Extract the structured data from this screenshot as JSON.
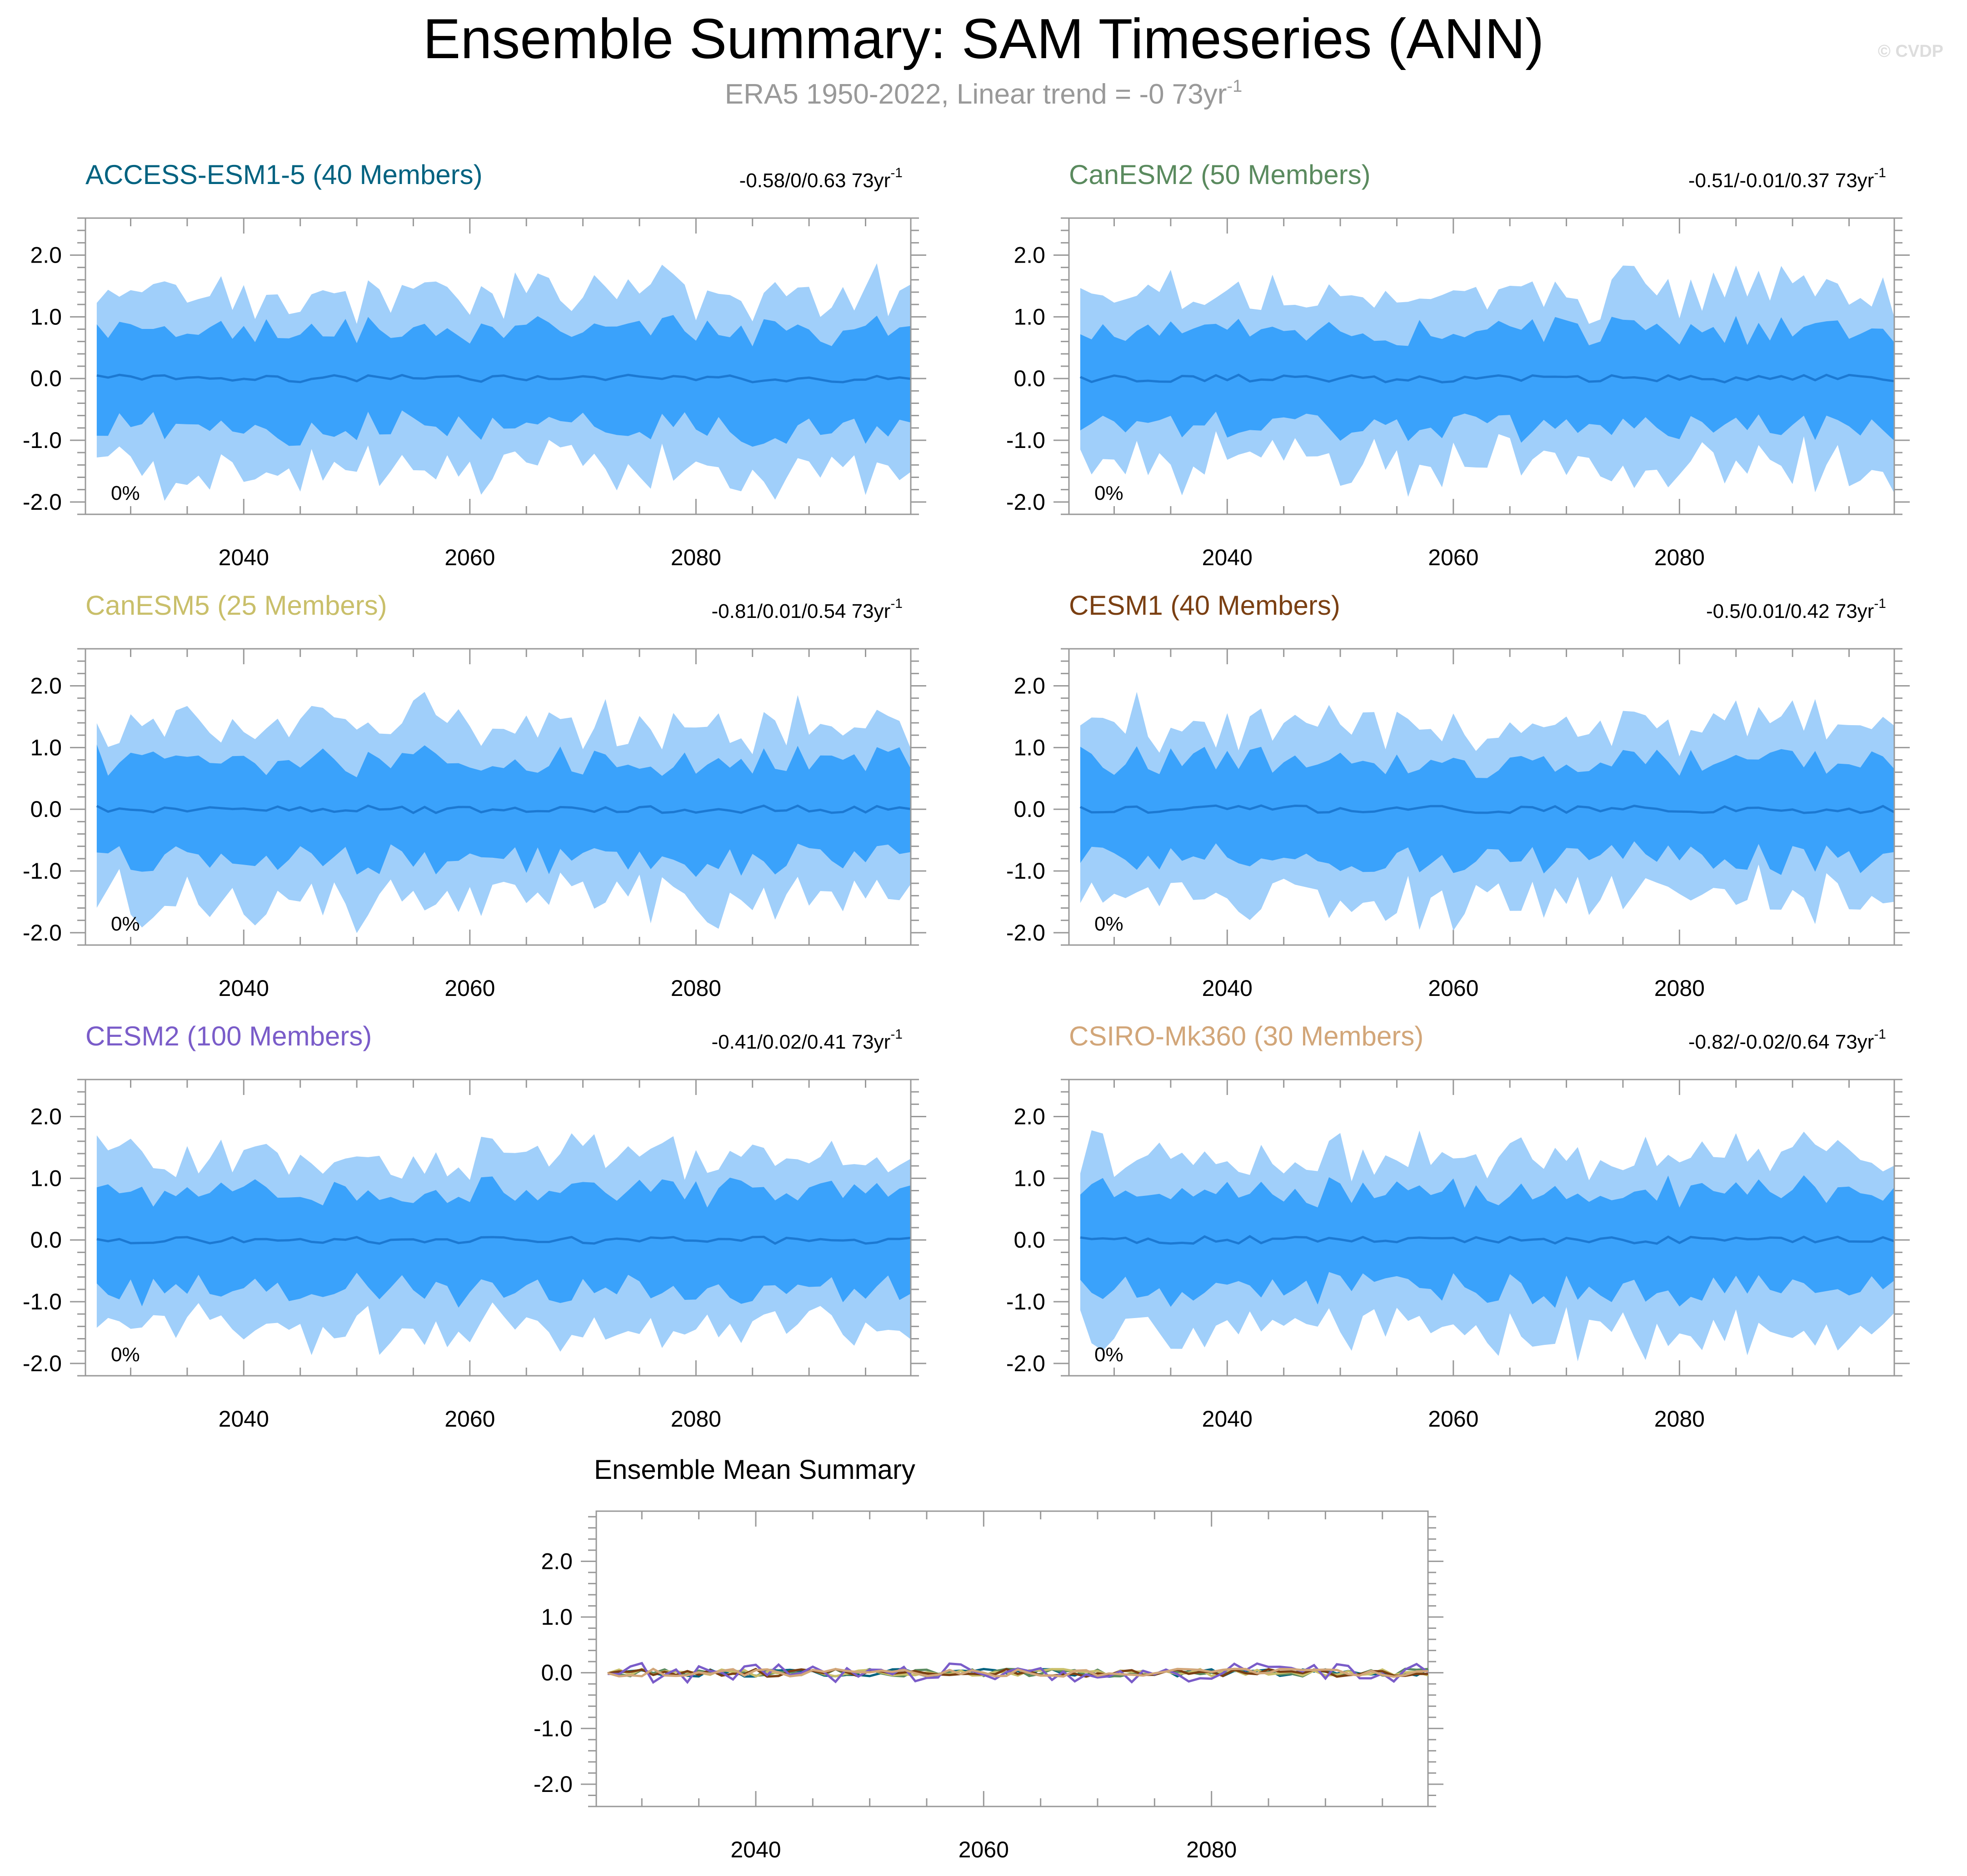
{
  "header": {
    "title": "Ensemble Summary: SAM Timeseries (ANN)",
    "subtitle": "ERA5 1950-2022, Linear trend = -0 73yr",
    "subtitle_sup": "-1",
    "copyright": "© CVDP"
  },
  "colors": {
    "outer_band": "#a0cffa",
    "inner_band": "#3aa2fb",
    "mean_line": "#1c79d2"
  },
  "chart_data": [
    {
      "type": "area",
      "title": "ACCESS-ESM1-5 (40 Members)",
      "title_color": "#006280",
      "trend": "-0.58/0/0.63 73yr",
      "trend_sup": "-1",
      "percent": "0%",
      "xlim": [
        2026,
        2099
      ],
      "ylim": [
        -2.2,
        2.6
      ],
      "xticks": [
        2040,
        2060,
        2080
      ],
      "xticklabels": [
        "2040",
        "2060",
        "2080"
      ],
      "yticks": [
        2.0,
        1.0,
        0.0,
        -1.0,
        -2.0
      ],
      "yticklabels": [
        "2.0",
        "1.0",
        "0.0",
        "-1.0",
        "-2.0"
      ],
      "seed": 11
    },
    {
      "type": "area",
      "title": "CanESM2 (50 Members)",
      "title_color": "#5a8a5e",
      "trend": "-0.51/-0.01/0.37 73yr",
      "trend_sup": "-1",
      "percent": "0%",
      "xlim": [
        2026,
        2099
      ],
      "ylim": [
        -2.2,
        2.6
      ],
      "xticks": [
        2040,
        2060,
        2080
      ],
      "xticklabels": [
        "2040",
        "2060",
        "2080"
      ],
      "yticks": [
        2.0,
        1.0,
        0.0,
        -1.0,
        -2.0
      ],
      "yticklabels": [
        "2.0",
        "1.0",
        "0.0",
        "-1.0",
        "-2.0"
      ],
      "seed": 23
    },
    {
      "type": "area",
      "title": "CanESM5 (25 Members)",
      "title_color": "#c9bf6a",
      "trend": "-0.81/0.01/0.54 73yr",
      "trend_sup": "-1",
      "percent": "0%",
      "xlim": [
        2026,
        2099
      ],
      "ylim": [
        -2.2,
        2.6
      ],
      "xticks": [
        2040,
        2060,
        2080
      ],
      "xticklabels": [
        "2040",
        "2060",
        "2080"
      ],
      "yticks": [
        2.0,
        1.0,
        0.0,
        -1.0,
        -2.0
      ],
      "yticklabels": [
        "2.0",
        "1.0",
        "0.0",
        "-1.0",
        "-2.0"
      ],
      "seed": 37
    },
    {
      "type": "area",
      "title": "CESM1 (40 Members)",
      "title_color": "#7a3f12",
      "trend": "-0.5/0.01/0.42 73yr",
      "trend_sup": "-1",
      "percent": "0%",
      "xlim": [
        2026,
        2099
      ],
      "ylim": [
        -2.2,
        2.6
      ],
      "xticks": [
        2040,
        2060,
        2080
      ],
      "xticklabels": [
        "2040",
        "2060",
        "2080"
      ],
      "yticks": [
        2.0,
        1.0,
        0.0,
        -1.0,
        -2.0
      ],
      "yticklabels": [
        "2.0",
        "1.0",
        "0.0",
        "-1.0",
        "-2.0"
      ],
      "seed": 41
    },
    {
      "type": "area",
      "title": "CESM2 (100 Members)",
      "title_color": "#7a5cc9",
      "trend": "-0.41/0.02/0.41 73yr",
      "trend_sup": "-1",
      "percent": "0%",
      "xlim": [
        2026,
        2099
      ],
      "ylim": [
        -2.2,
        2.6
      ],
      "xticks": [
        2040,
        2060,
        2080
      ],
      "xticklabels": [
        "2040",
        "2060",
        "2080"
      ],
      "yticks": [
        2.0,
        1.0,
        0.0,
        -1.0,
        -2.0
      ],
      "yticklabels": [
        "2.0",
        "1.0",
        "0.0",
        "-1.0",
        "-2.0"
      ],
      "seed": 53
    },
    {
      "type": "area",
      "title": "CSIRO-Mk360 (30 Members)",
      "title_color": "#d2a679",
      "trend": "-0.82/-0.02/0.64 73yr",
      "trend_sup": "-1",
      "percent": "0%",
      "xlim": [
        2026,
        2099
      ],
      "ylim": [
        -2.2,
        2.6
      ],
      "xticks": [
        2040,
        2060,
        2080
      ],
      "xticklabels": [
        "2040",
        "2060",
        "2080"
      ],
      "yticks": [
        2.0,
        1.0,
        0.0,
        -1.0,
        -2.0
      ],
      "yticklabels": [
        "2.0",
        "1.0",
        "0.0",
        "-1.0",
        "-2.0"
      ],
      "seed": 67
    },
    {
      "type": "line",
      "title": "Ensemble Mean Summary",
      "xlim": [
        2026,
        2099
      ],
      "ylim": [
        -2.4,
        2.9
      ],
      "xticks": [
        2040,
        2060,
        2080
      ],
      "xticklabels": [
        "2040",
        "2060",
        "2080"
      ],
      "yticks": [
        2.0,
        1.0,
        0.0,
        -1.0,
        -2.0
      ],
      "yticklabels": [
        "2.0",
        "1.0",
        "0.0",
        "-1.0",
        "-2.0"
      ],
      "series": [
        {
          "name": "ACCESS-ESM1-5",
          "color": "#006280"
        },
        {
          "name": "CanESM2",
          "color": "#5a8a5e"
        },
        {
          "name": "CanESM5",
          "color": "#c9bf6a"
        },
        {
          "name": "CESM1",
          "color": "#7a3f12"
        },
        {
          "name": "CESM2",
          "color": "#7a5cc9"
        },
        {
          "name": "CSIRO-Mk360",
          "color": "#d2a679"
        }
      ]
    }
  ]
}
